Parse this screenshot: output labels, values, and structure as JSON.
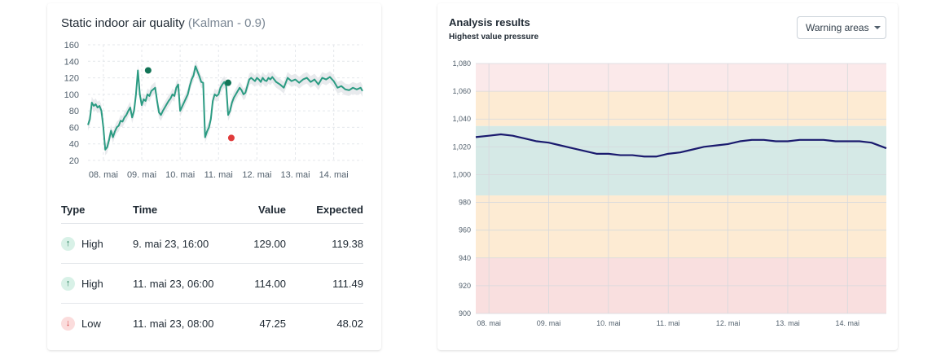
{
  "left_panel": {
    "title": "Static indoor air quality",
    "subtitle": "(Kalman - 0.9)",
    "chart_data": {
      "type": "line",
      "title": "Static indoor air quality (Kalman - 0.9)",
      "ylim": [
        20,
        160
      ],
      "yticks": [
        "160",
        "140",
        "120",
        "100",
        "80",
        "60",
        "40",
        "20"
      ],
      "xticks": [
        "08. mai",
        "09. mai",
        "10. mai",
        "11. mai",
        "12. mai",
        "13. mai",
        "14. mai"
      ],
      "x_range_days": [
        7.6,
        14.75
      ],
      "series": [
        {
          "name": "value",
          "x": [
            7.6,
            7.65,
            7.7,
            7.75,
            7.8,
            7.85,
            7.9,
            7.95,
            8.0,
            8.05,
            8.1,
            8.15,
            8.2,
            8.25,
            8.3,
            8.35,
            8.4,
            8.45,
            8.5,
            8.55,
            8.6,
            8.65,
            8.7,
            8.75,
            8.8,
            8.85,
            8.9,
            8.95,
            9.0,
            9.05,
            9.1,
            9.15,
            9.2,
            9.25,
            9.3,
            9.35,
            9.4,
            9.45,
            9.5,
            9.55,
            9.6,
            9.65,
            9.7,
            9.75,
            9.8,
            9.85,
            9.9,
            9.95,
            10.0,
            10.05,
            10.1,
            10.15,
            10.2,
            10.25,
            10.3,
            10.35,
            10.4,
            10.45,
            10.5,
            10.55,
            10.6,
            10.65,
            10.7,
            10.75,
            10.8,
            10.85,
            10.9,
            10.95,
            11.0,
            11.05,
            11.1,
            11.15,
            11.2,
            11.25,
            11.3,
            11.35,
            11.4,
            11.45,
            11.5,
            11.55,
            11.6,
            11.65,
            11.7,
            11.75,
            11.8,
            11.85,
            11.9,
            11.95,
            12.0,
            12.05,
            12.1,
            12.15,
            12.2,
            12.25,
            12.3,
            12.35,
            12.4,
            12.5,
            12.6,
            12.7,
            12.8,
            12.9,
            13.0,
            13.1,
            13.2,
            13.3,
            13.4,
            13.5,
            13.6,
            13.7,
            13.8,
            13.9,
            14.0,
            14.1,
            14.2,
            14.3,
            14.4,
            14.5,
            14.6,
            14.7,
            14.75
          ],
          "values": [
            63,
            70,
            90,
            86,
            88,
            84,
            86,
            80,
            60,
            33,
            36,
            45,
            56,
            48,
            55,
            60,
            62,
            68,
            67,
            72,
            75,
            80,
            84,
            72,
            80,
            100,
            129,
            100,
            87,
            94,
            92,
            100,
            98,
            104,
            106,
            108,
            92,
            78,
            75,
            80,
            84,
            88,
            92,
            95,
            100,
            98,
            108,
            112,
            80,
            85,
            90,
            95,
            100,
            110,
            118,
            123,
            134,
            128,
            122,
            115,
            114,
            48,
            55,
            60,
            70,
            92,
            100,
            98,
            100,
            108,
            112,
            115,
            110,
            75,
            80,
            90,
            96,
            100,
            104,
            108,
            105,
            100,
            102,
            110,
            118,
            120,
            118,
            116,
            120,
            118,
            115,
            120,
            117,
            116,
            120,
            118,
            121,
            115,
            112,
            108,
            120,
            116,
            118,
            114,
            118,
            120,
            115,
            118,
            112,
            120,
            118,
            121,
            116,
            108,
            110,
            106,
            105,
            108,
            106,
            108,
            104
          ]
        }
      ],
      "markers": [
        {
          "x": 9.167,
          "y": 129,
          "type": "High"
        },
        {
          "x": 11.25,
          "y": 114,
          "type": "High"
        },
        {
          "x": 11.333,
          "y": 47.25,
          "type": "Low"
        }
      ]
    },
    "table": {
      "headers": {
        "type": "Type",
        "time": "Time",
        "value": "Value",
        "expected": "Expected"
      },
      "rows": [
        {
          "type": "High",
          "time": "9. mai 23, 16:00",
          "value": "129.00",
          "expected": "119.38",
          "direction": "up"
        },
        {
          "type": "High",
          "time": "11. mai 23, 06:00",
          "value": "114.00",
          "expected": "111.49",
          "direction": "up"
        },
        {
          "type": "Low",
          "time": "11. mai 23, 08:00",
          "value": "47.25",
          "expected": "48.02",
          "direction": "down"
        }
      ]
    }
  },
  "right_panel": {
    "title": "Analysis results",
    "subtitle": "Highest value pressure",
    "dropdown_label": "Warning areas",
    "chart_data": {
      "type": "line",
      "ylim": [
        900,
        1080
      ],
      "yticks": [
        "1,080",
        "1,060",
        "1,040",
        "1,020",
        "1,000",
        "980",
        "960",
        "940",
        "920",
        "900"
      ],
      "xticks": [
        "08. mai",
        "09. mai",
        "10. mai",
        "11. mai",
        "12. mai",
        "13. mai",
        "14. mai"
      ],
      "x_range_days": [
        7.78,
        14.65
      ],
      "bands": [
        {
          "from": 1060,
          "to": 1080,
          "color": "#fbe9ea"
        },
        {
          "from": 1035,
          "to": 1060,
          "color": "#fdebd3"
        },
        {
          "from": 985,
          "to": 1035,
          "color": "#d5e9e6"
        },
        {
          "from": 940,
          "to": 985,
          "color": "#fdebd3"
        },
        {
          "from": 900,
          "to": 940,
          "color": "#f9dfdf"
        }
      ],
      "series": [
        {
          "name": "pressure",
          "x": [
            7.78,
            8.0,
            8.2,
            8.4,
            8.6,
            8.8,
            9.0,
            9.2,
            9.4,
            9.6,
            9.8,
            10.0,
            10.2,
            10.4,
            10.6,
            10.8,
            11.0,
            11.2,
            11.4,
            11.6,
            11.8,
            12.0,
            12.2,
            12.4,
            12.6,
            12.8,
            13.0,
            13.2,
            13.4,
            13.6,
            13.8,
            14.0,
            14.2,
            14.4,
            14.65
          ],
          "values": [
            1027,
            1028,
            1029,
            1028,
            1026,
            1024,
            1023,
            1021,
            1019,
            1017,
            1015,
            1015,
            1014,
            1014,
            1013,
            1013,
            1015,
            1016,
            1018,
            1020,
            1021,
            1022,
            1024,
            1025,
            1025,
            1024,
            1024,
            1025,
            1025,
            1025,
            1024,
            1024,
            1024,
            1023,
            1019
          ]
        }
      ]
    }
  }
}
